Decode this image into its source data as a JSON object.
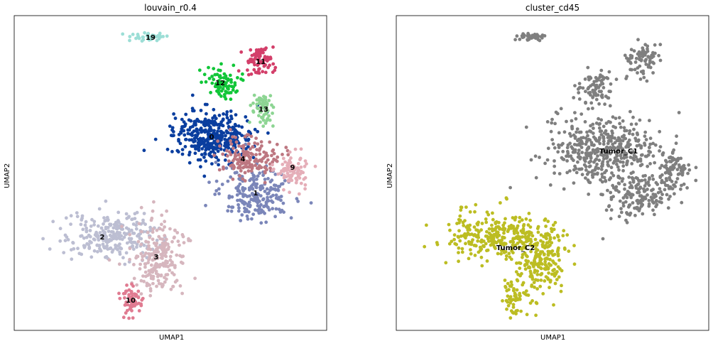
{
  "charts": [
    {
      "title": "louvain_r0.4",
      "xlabel": "UMAP1",
      "ylabel": "UMAP2"
    },
    {
      "title": "cluster_cd45",
      "xlabel": "UMAP1",
      "ylabel": "UMAP2"
    }
  ],
  "chart_data": [
    {
      "type": "scatter",
      "title": "louvain_r0.4",
      "xlabel": "UMAP1",
      "ylabel": "UMAP2",
      "grid": false,
      "legend": "on-data",
      "clusters": [
        {
          "label": "0",
          "color": "#0a3e9f"
        },
        {
          "label": "1",
          "color": "#7b86b9"
        },
        {
          "label": "2",
          "color": "#bcbed2"
        },
        {
          "label": "3",
          "color": "#d6b6be"
        },
        {
          "label": "4",
          "color": "#bd7781"
        },
        {
          "label": "9",
          "color": "#e5aeb8"
        },
        {
          "label": "10",
          "color": "#e07b91"
        },
        {
          "label": "11",
          "color": "#d33f6a"
        },
        {
          "label": "12",
          "color": "#11c638"
        },
        {
          "label": "13",
          "color": "#8dd593"
        },
        {
          "label": "19",
          "color": "#9cded6"
        }
      ]
    },
    {
      "type": "scatter",
      "title": "cluster_cd45",
      "xlabel": "UMAP1",
      "ylabel": "UMAP2",
      "grid": false,
      "legend": "on-data",
      "clusters": [
        {
          "label": "Tumor_C1",
          "color": "#7f7f7f"
        },
        {
          "label": "Tumor_C2",
          "color": "#bcbd22"
        }
      ]
    }
  ]
}
